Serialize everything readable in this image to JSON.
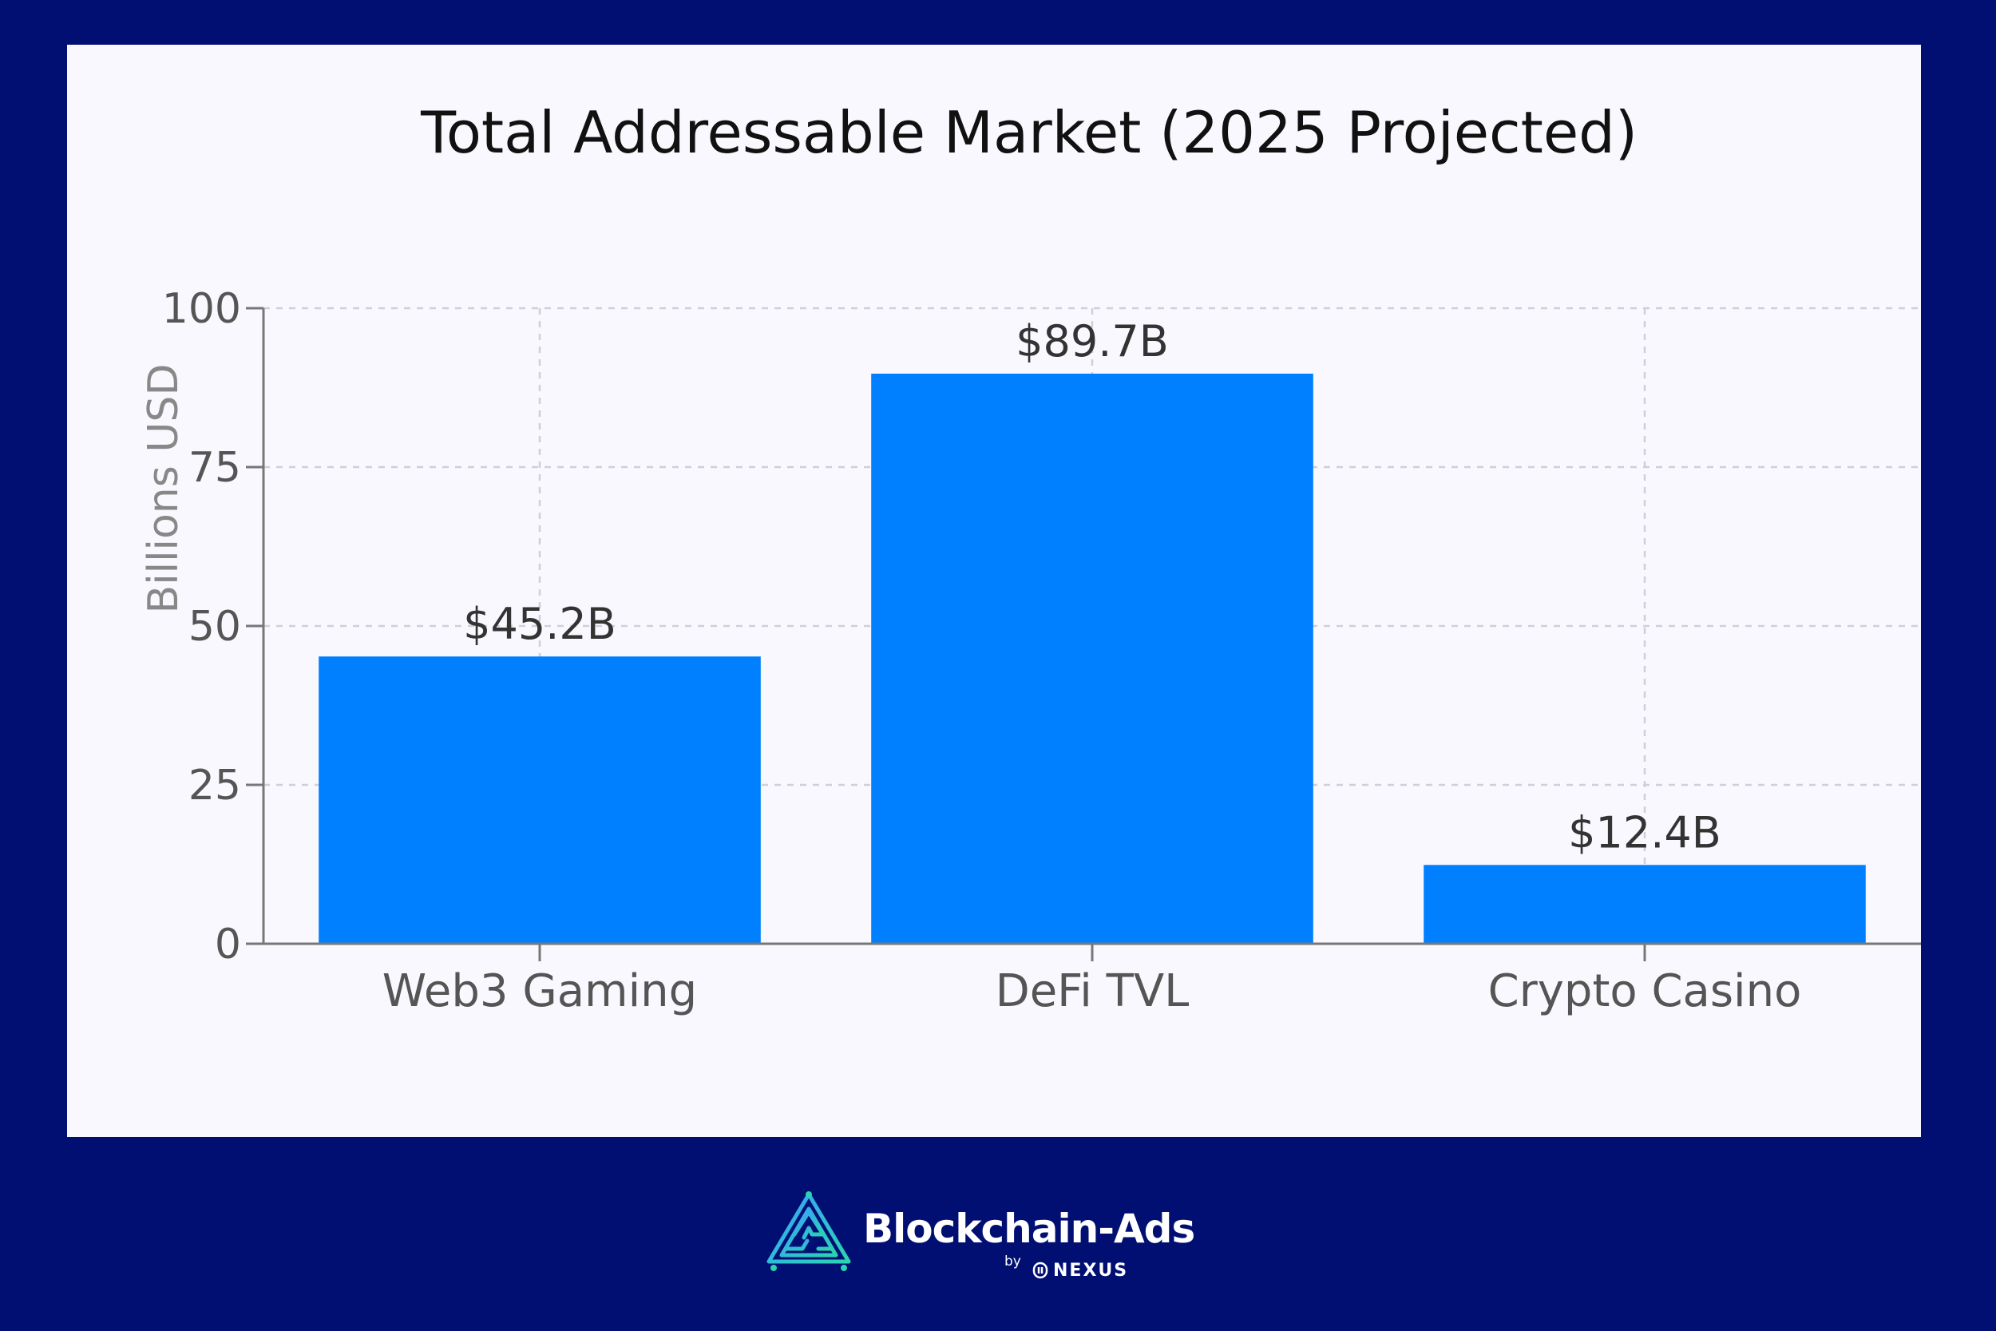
{
  "chart_data": {
    "type": "bar",
    "title": "Total Addressable Market (2025 Projected)",
    "xlabel": "",
    "ylabel": "Billions USD",
    "categories": [
      "Web3 Gaming",
      "DeFi TVL",
      "Crypto Casino"
    ],
    "values": [
      45.2,
      89.7,
      12.4
    ],
    "data_labels": [
      "$45.2B",
      "$89.7B",
      "$12.4B"
    ],
    "ylim": [
      0,
      100
    ],
    "yticks": [
      0,
      25,
      50,
      75,
      100
    ],
    "grid": true,
    "bar_color": "#0080ff"
  },
  "brand": {
    "name": "Blockchain-Ads",
    "by": "by",
    "sub": "NEXUS",
    "logo_icon": "blockchain-ads-logo-icon",
    "nexus_icon": "nexus-logo-icon",
    "accent_color": "#2ad4b0"
  },
  "colors": {
    "background": "#010f73",
    "panel": "#f8f8fe"
  }
}
